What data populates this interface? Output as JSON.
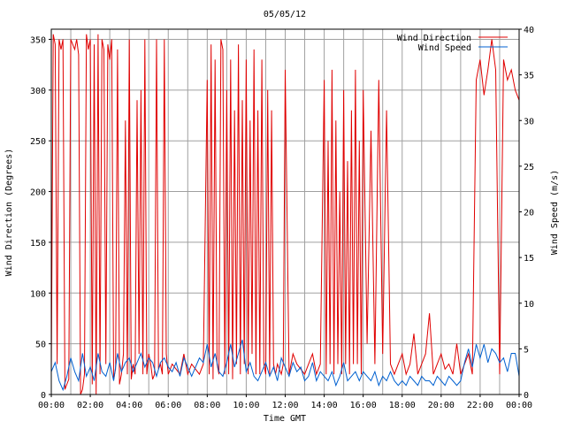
{
  "chart_data": {
    "type": "line",
    "title": "05/05/12",
    "xlabel": "Time GMT",
    "ylabel_left": "Wind Direction (Degrees)",
    "ylabel_right": "Wind Speed (m/s)",
    "x_ticks": [
      "00:00",
      "02:00",
      "04:00",
      "06:00",
      "08:00",
      "10:00",
      "12:00",
      "14:00",
      "16:00",
      "18:00",
      "20:00",
      "22:00",
      "00:00"
    ],
    "x_range_hours": [
      0,
      24
    ],
    "y_left_range": [
      0,
      360
    ],
    "y_left_ticks": [
      0,
      50,
      100,
      150,
      200,
      250,
      300,
      350
    ],
    "y_right_range": [
      0,
      40
    ],
    "y_right_ticks": [
      0,
      5,
      10,
      15,
      20,
      25,
      30,
      35,
      40
    ],
    "grid": true,
    "legend_position": "top-right",
    "series": [
      {
        "name": "Wind Direction",
        "axis": "left",
        "color": "#e00000",
        "x_hours": [
          0.0,
          0.1,
          0.2,
          0.3,
          0.4,
          0.5,
          0.6,
          0.7,
          0.8,
          0.9,
          1.0,
          1.1,
          1.2,
          1.3,
          1.4,
          1.5,
          1.6,
          1.7,
          1.8,
          1.9,
          2.0,
          2.1,
          2.2,
          2.3,
          2.4,
          2.5,
          2.6,
          2.7,
          2.8,
          2.9,
          3.0,
          3.1,
          3.2,
          3.3,
          3.4,
          3.5,
          3.6,
          3.7,
          3.8,
          3.9,
          4.0,
          4.1,
          4.2,
          4.3,
          4.4,
          4.5,
          4.6,
          4.7,
          4.8,
          4.9,
          5.0,
          5.1,
          5.2,
          5.3,
          5.4,
          5.5,
          5.6,
          5.7,
          5.8,
          5.9,
          6.0,
          6.2,
          6.4,
          6.6,
          6.8,
          7.0,
          7.2,
          7.4,
          7.6,
          7.8,
          8.0,
          8.1,
          8.2,
          8.3,
          8.4,
          8.5,
          8.6,
          8.7,
          8.8,
          8.9,
          9.0,
          9.1,
          9.2,
          9.3,
          9.4,
          9.5,
          9.6,
          9.7,
          9.8,
          9.9,
          10.0,
          10.1,
          10.2,
          10.3,
          10.4,
          10.5,
          10.6,
          10.7,
          10.8,
          10.9,
          11.0,
          11.1,
          11.2,
          11.3,
          11.4,
          11.5,
          11.6,
          11.7,
          11.8,
          11.9,
          12.0,
          12.2,
          12.4,
          12.6,
          12.8,
          13.0,
          13.2,
          13.4,
          13.6,
          13.8,
          14.0,
          14.1,
          14.2,
          14.3,
          14.4,
          14.5,
          14.6,
          14.7,
          14.8,
          14.9,
          15.0,
          15.1,
          15.2,
          15.3,
          15.4,
          15.5,
          15.6,
          15.7,
          15.8,
          15.9,
          16.0,
          16.2,
          16.4,
          16.6,
          16.8,
          17.0,
          17.2,
          17.4,
          17.6,
          17.8,
          18.0,
          18.2,
          18.4,
          18.6,
          18.8,
          19.0,
          19.2,
          19.4,
          19.6,
          19.8,
          20.0,
          20.2,
          20.4,
          20.6,
          20.8,
          21.0,
          21.2,
          21.4,
          21.6,
          21.8,
          22.0,
          22.2,
          22.4,
          22.6,
          22.8,
          23.0,
          23.2,
          23.4,
          23.6,
          23.8,
          24.0
        ],
        "values": [
          20,
          355,
          345,
          30,
          350,
          340,
          350,
          5,
          10,
          15,
          350,
          345,
          340,
          350,
          335,
          0,
          5,
          20,
          355,
          340,
          350,
          10,
          345,
          0,
          355,
          20,
          350,
          340,
          30,
          345,
          330,
          350,
          15,
          25,
          340,
          10,
          20,
          40,
          270,
          20,
          350,
          15,
          30,
          20,
          290,
          40,
          300,
          20,
          350,
          20,
          40,
          30,
          15,
          20,
          350,
          25,
          30,
          20,
          350,
          40,
          20,
          30,
          25,
          20,
          40,
          20,
          30,
          25,
          20,
          30,
          310,
          20,
          345,
          15,
          330,
          30,
          20,
          350,
          340,
          20,
          300,
          20,
          330,
          15,
          280,
          30,
          345,
          20,
          290,
          30,
          330,
          20,
          270,
          40,
          340,
          20,
          280,
          20,
          330,
          30,
          20,
          300,
          20,
          280,
          30,
          20,
          30,
          25,
          20,
          30,
          320,
          20,
          40,
          30,
          25,
          20,
          30,
          40,
          20,
          30,
          310,
          20,
          250,
          30,
          320,
          20,
          270,
          30,
          200,
          20,
          300,
          30,
          230,
          20,
          280,
          30,
          320,
          30,
          250,
          20,
          300,
          50,
          260,
          30,
          310,
          40,
          280,
          30,
          20,
          30,
          40,
          20,
          30,
          60,
          20,
          30,
          40,
          80,
          20,
          30,
          40,
          25,
          30,
          20,
          50,
          20,
          30,
          40,
          20,
          310,
          330,
          295,
          320,
          350,
          320,
          20,
          330,
          310,
          320,
          300,
          290
        ]
      },
      {
        "name": "Wind Speed",
        "axis": "right",
        "color": "#0060d0",
        "x_hours": [
          0.0,
          0.2,
          0.4,
          0.6,
          0.8,
          1.0,
          1.2,
          1.4,
          1.6,
          1.8,
          2.0,
          2.2,
          2.4,
          2.6,
          2.8,
          3.0,
          3.2,
          3.4,
          3.6,
          3.8,
          4.0,
          4.2,
          4.4,
          4.6,
          4.8,
          5.0,
          5.2,
          5.4,
          5.6,
          5.8,
          6.0,
          6.2,
          6.4,
          6.6,
          6.8,
          7.0,
          7.2,
          7.4,
          7.6,
          7.8,
          8.0,
          8.2,
          8.4,
          8.6,
          8.8,
          9.0,
          9.2,
          9.4,
          9.6,
          9.8,
          10.0,
          10.2,
          10.4,
          10.6,
          10.8,
          11.0,
          11.2,
          11.4,
          11.6,
          11.8,
          12.0,
          12.2,
          12.4,
          12.6,
          12.8,
          13.0,
          13.2,
          13.4,
          13.6,
          13.8,
          14.0,
          14.2,
          14.4,
          14.6,
          14.8,
          15.0,
          15.2,
          15.4,
          15.6,
          15.8,
          16.0,
          16.2,
          16.4,
          16.6,
          16.8,
          17.0,
          17.2,
          17.4,
          17.6,
          17.8,
          18.0,
          18.2,
          18.4,
          18.6,
          18.8,
          19.0,
          19.2,
          19.4,
          19.6,
          19.8,
          20.0,
          20.2,
          20.4,
          20.6,
          20.8,
          21.0,
          21.2,
          21.4,
          21.6,
          21.8,
          22.0,
          22.2,
          22.4,
          22.6,
          22.8,
          23.0,
          23.2,
          23.4,
          23.6,
          23.8,
          24.0
        ],
        "values": [
          2.5,
          3.5,
          1.5,
          0.5,
          2.0,
          4.0,
          2.5,
          1.5,
          4.5,
          2.0,
          3.0,
          1.5,
          4.5,
          2.5,
          2.0,
          3.5,
          1.5,
          4.5,
          2.5,
          3.5,
          4.0,
          2.5,
          3.5,
          4.5,
          3.0,
          4.0,
          3.5,
          2.0,
          3.5,
          4.0,
          3.0,
          2.5,
          3.5,
          2.0,
          4.0,
          3.0,
          2.0,
          3.0,
          4.0,
          3.5,
          5.5,
          3.0,
          4.5,
          2.5,
          2.0,
          3.5,
          5.5,
          3.0,
          4.5,
          6.0,
          2.5,
          3.5,
          2.0,
          1.5,
          2.5,
          3.5,
          2.0,
          3.0,
          1.5,
          4.0,
          3.0,
          2.0,
          3.5,
          2.5,
          3.0,
          1.5,
          2.0,
          3.5,
          1.5,
          2.5,
          2.0,
          1.5,
          2.5,
          1.0,
          2.0,
          3.5,
          1.5,
          2.0,
          2.5,
          1.5,
          2.5,
          2.0,
          1.5,
          2.5,
          1.0,
          2.0,
          1.5,
          2.5,
          1.5,
          1.0,
          1.5,
          1.0,
          2.0,
          1.5,
          1.0,
          2.0,
          1.5,
          1.5,
          1.0,
          2.0,
          1.5,
          1.0,
          2.0,
          1.5,
          1.0,
          1.5,
          3.5,
          5.0,
          3.0,
          5.5,
          4.0,
          5.5,
          3.5,
          5.0,
          4.5,
          3.5,
          4.0,
          2.5,
          4.5,
          4.5,
          2.0
        ]
      }
    ]
  }
}
